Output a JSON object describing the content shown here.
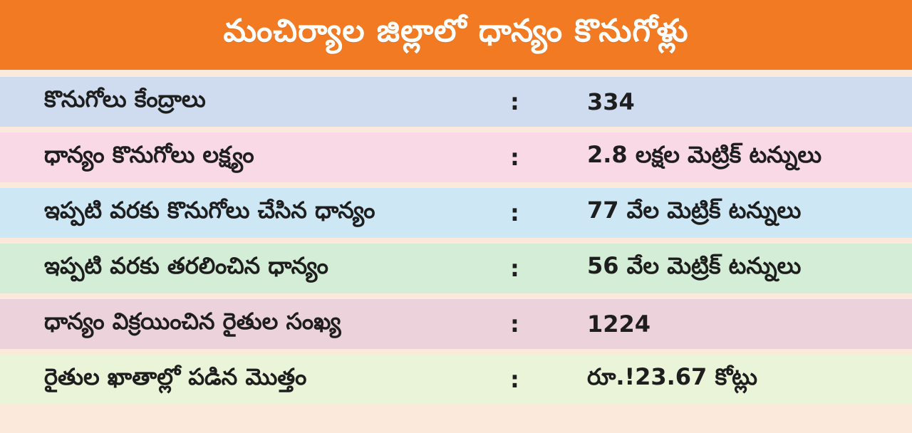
{
  "header": {
    "title": "మంచిర్యాల జిల్లాలో ధాన్యం కొనుగోళ్లు"
  },
  "colors": {
    "header_bg": "#f17a22",
    "page_bg": "#fbe9dc"
  },
  "rows": [
    {
      "label": "కొనుగోలు కేంద్రాలు",
      "separator": ":",
      "value": "334",
      "color": "#cfdcef"
    },
    {
      "label": "ధాన్యం కొనుగోలు లక్ష్యం",
      "separator": ":",
      "value": "2.8 లక్షల మెట్రిక్ టన్నులు",
      "color": "#f9d9e6"
    },
    {
      "label": "ఇప్పటి వరకు కొనుగోలు చేసిన ధాన్యం",
      "separator": ":",
      "value": "77 వేల మెట్రిక్ టన్నులు",
      "color": "#cde7f4"
    },
    {
      "label": "ఇప్పటి వరకు తరలించిన ధాన్యం",
      "separator": ":",
      "value": "56 వేల మెట్రిక్ టన్నులు",
      "color": "#d3edd6"
    },
    {
      "label": "ధాన్యం విక్రయించిన రైతుల సంఖ్య",
      "separator": ":",
      "value": "1224",
      "color": "#ecd3db"
    },
    {
      "label": "రైతుల ఖాతాల్లో పడిన మొత్తం",
      "separator": ":",
      "value": "రూ.!23.67 కోట్లు",
      "color": "#eaf4d8"
    }
  ]
}
